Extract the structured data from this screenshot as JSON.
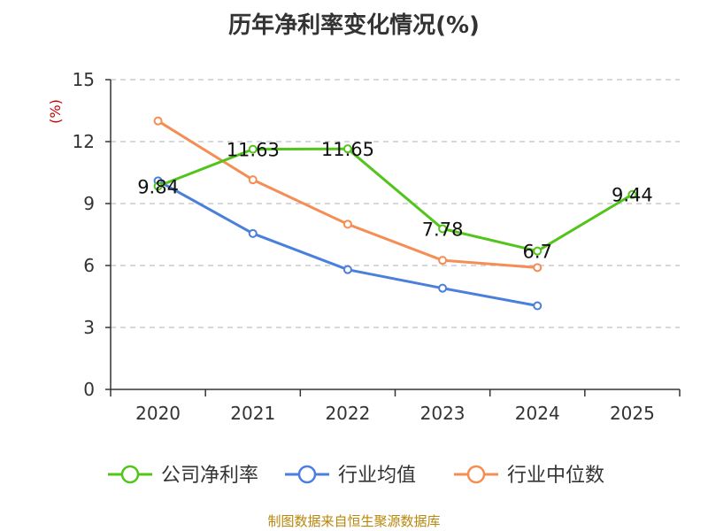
{
  "chart_data": {
    "type": "line",
    "title": "历年净利率变化情况(%)",
    "ylabel": "(%)",
    "xlabel": "",
    "categories": [
      "2020",
      "2021",
      "2022",
      "2023",
      "2024",
      "2025"
    ],
    "ylim": [
      0,
      15
    ],
    "yticks": [
      0,
      3,
      6,
      9,
      12,
      15
    ],
    "grid": true,
    "legend_position": "bottom",
    "series": [
      {
        "name": "公司净利率",
        "color": "#52c41a",
        "values": [
          9.84,
          11.63,
          11.65,
          7.78,
          6.7,
          9.44
        ],
        "labels": [
          "9.84",
          "11.63",
          "11.65",
          "7.78",
          "6.7",
          "9.44"
        ]
      },
      {
        "name": "行业均值",
        "color": "#4a7fdc",
        "values": [
          10.1,
          7.55,
          5.8,
          4.9,
          4.05,
          null
        ]
      },
      {
        "name": "行业中位数",
        "color": "#f58d55",
        "values": [
          13.0,
          10.15,
          8.0,
          6.25,
          5.9,
          null
        ]
      }
    ]
  },
  "colors": {
    "axis": "#333333",
    "ylabel": "#cc0000",
    "source": "#b8860b",
    "grid": "#cccccc"
  },
  "source": "制图数据来自恒生聚源数据库"
}
